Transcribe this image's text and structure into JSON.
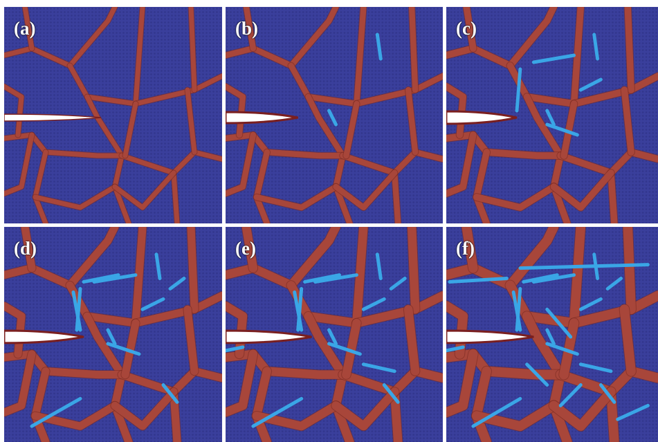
{
  "panels": [
    {
      "label": "(a)",
      "stage": 0
    },
    {
      "label": "(b)",
      "stage": 1
    },
    {
      "label": "(c)",
      "stage": 2
    },
    {
      "label": "(d)",
      "stage": 3
    },
    {
      "label": "(e)",
      "stage": 4
    },
    {
      "label": "(f)",
      "stage": 5
    }
  ],
  "colors": {
    "grain": "#3a3f9c",
    "grain_dark": "#2b3081",
    "boundary": "#a8463a",
    "boundary_dark": "#7a2a22",
    "stacking_fault": "#3aa6e6",
    "crack": "#ffffff",
    "crack_edge": "#7a1f1f",
    "divider": "#ffffff"
  }
}
